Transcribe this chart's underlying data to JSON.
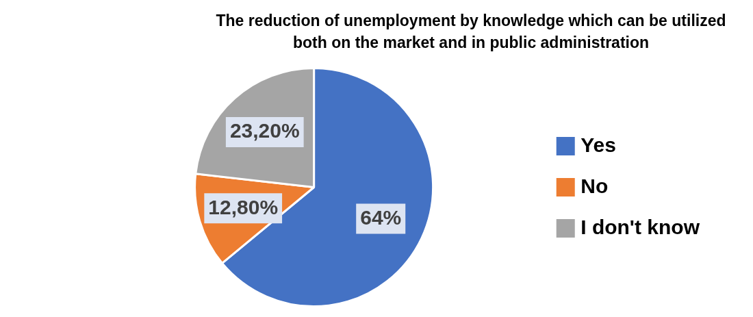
{
  "chart_data": {
    "type": "pie",
    "title": "The reduction of unemployment by knowledge which can be utilized both on the market and in public administration",
    "categories": [
      "Yes",
      "No",
      "I don't know"
    ],
    "values": [
      64,
      12.8,
      23.2
    ],
    "colors": [
      "#4472c4",
      "#ed7d31",
      "#a5a5a5"
    ],
    "value_labels": [
      "64%",
      "12,80%",
      "23,20%"
    ],
    "legend": "right"
  }
}
